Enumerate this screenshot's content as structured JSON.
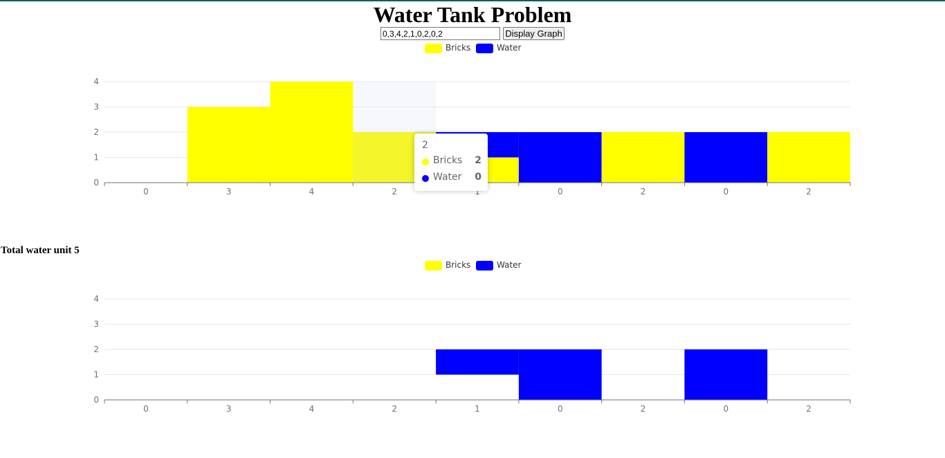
{
  "page": {
    "title": "Water Tank Problem",
    "input_value": "0,3,4,2,1,0,2,0,2",
    "button_label": "Display Graph",
    "total_text": "Total water unit 5"
  },
  "colors": {
    "bricks": "#ffff00",
    "water": "#0000ff",
    "highlight": "#f7f8fc",
    "topline": "#0f5f5a"
  },
  "tooltip": {
    "title": "2",
    "rows": [
      {
        "name": "Bricks",
        "value": "2",
        "color": "#ffff00"
      },
      {
        "name": "Water",
        "value": "0",
        "color": "#0000ff"
      }
    ]
  },
  "chart_data": [
    {
      "type": "bar",
      "stacked": true,
      "categories": [
        "0",
        "3",
        "4",
        "2",
        "1",
        "0",
        "2",
        "0",
        "2"
      ],
      "series": [
        {
          "name": "Bricks",
          "values": [
            0,
            3,
            4,
            2,
            1,
            0,
            2,
            0,
            2
          ]
        },
        {
          "name": "Water",
          "values": [
            0,
            0,
            0,
            0,
            1,
            2,
            0,
            2,
            0
          ]
        }
      ],
      "yticks": [
        0,
        1,
        2,
        3,
        4
      ],
      "ylim": [
        0,
        4
      ],
      "grid": true,
      "legend": "top-center",
      "highlighted_category_index": 3
    },
    {
      "type": "bar",
      "stacked": true,
      "categories": [
        "0",
        "3",
        "4",
        "2",
        "1",
        "0",
        "2",
        "0",
        "2"
      ],
      "series": [
        {
          "name": "Bricks",
          "values": [
            0,
            0,
            0,
            0,
            1,
            0,
            0,
            0,
            0
          ],
          "hidden_fill": true
        },
        {
          "name": "Water",
          "values": [
            0,
            0,
            0,
            0,
            1,
            2,
            0,
            2,
            0
          ]
        }
      ],
      "yticks": [
        0,
        1,
        2,
        3,
        4
      ],
      "ylim": [
        0,
        4
      ],
      "grid": true,
      "legend": "top-center"
    }
  ]
}
